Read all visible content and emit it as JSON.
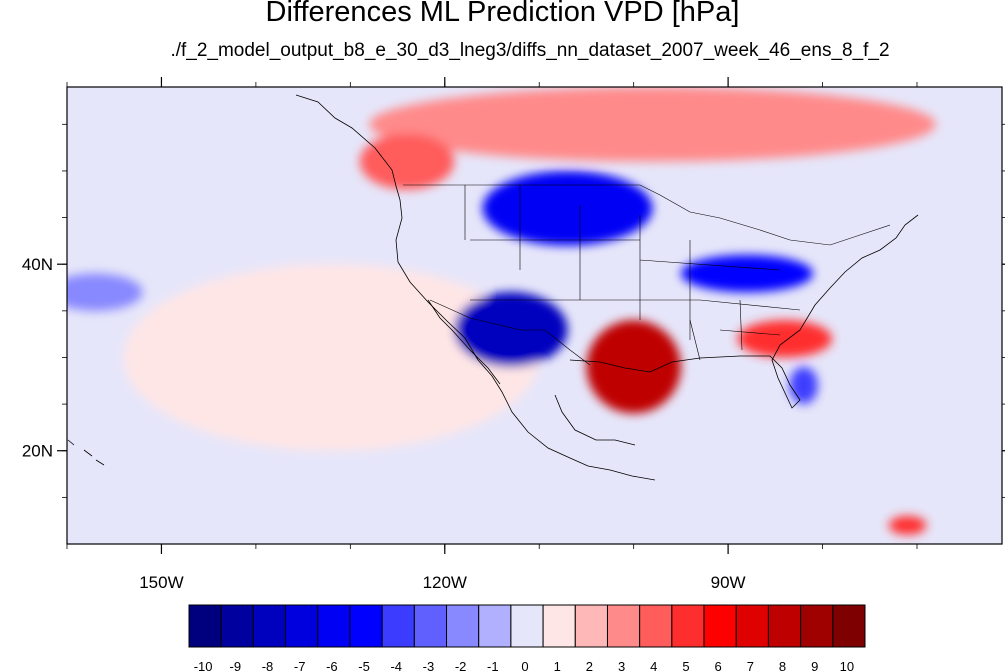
{
  "title": "Differences ML Prediction VPD [hPa]",
  "subtitle": "./f_2_model_output_b8_e_30_d3_lneg3/diffs_nn_dataset_2007_week_46_ens_8_f_2",
  "map": {
    "projection": "cylindrical-equidistant",
    "lon_range": [
      -160,
      -61
    ],
    "lat_range": [
      10,
      59
    ],
    "lon_ticks": [
      {
        "lon": -150,
        "label": "150W"
      },
      {
        "lon": -120,
        "label": "120W"
      },
      {
        "lon": -90,
        "label": "90W"
      }
    ],
    "lat_ticks": [
      {
        "lat": 40,
        "label": "40N"
      },
      {
        "lat": 20,
        "label": "20N"
      }
    ],
    "background_color": "#e6e6fa"
  },
  "colorbar": {
    "labels": [
      "-10",
      "-9",
      "-8",
      "-7",
      "-6",
      "-5",
      "-4",
      "-3",
      "-2",
      "-1",
      "0",
      "1",
      "2",
      "3",
      "4",
      "5",
      "6",
      "7",
      "8",
      "9",
      "10"
    ],
    "colors": [
      "#00007f",
      "#00009f",
      "#0000bf",
      "#0000df",
      "#0000f5",
      "#0000ff",
      "#3c3cff",
      "#6060ff",
      "#8888ff",
      "#b0b0ff",
      "#e6e6fa",
      "#ffe6e6",
      "#ffb8b8",
      "#ff8a8a",
      "#ff5c5c",
      "#ff2e2e",
      "#ff0000",
      "#df0000",
      "#bf0000",
      "#9f0000",
      "#7f0000"
    ]
  },
  "regions": [
    {
      "name": "pacific-warm-band",
      "level": 1,
      "lon": -132,
      "lat": 30,
      "rx": 22,
      "ry": 10
    },
    {
      "name": "canada-warm-anomaly",
      "level": 3,
      "lon": -98,
      "lat": 55,
      "rx": 30,
      "ry": 4
    },
    {
      "name": "northwest-warm-anomaly",
      "level": 4,
      "lon": -124,
      "lat": 51,
      "rx": 5,
      "ry": 3
    },
    {
      "name": "northern-plains-cold-anomaly",
      "level": -6,
      "lon": -107,
      "lat": 46,
      "rx": 9,
      "ry": 4
    },
    {
      "name": "southwest-cold-anomaly",
      "level": -8,
      "lon": -113,
      "lat": 33,
      "rx": 6,
      "ry": 4
    },
    {
      "name": "southern-plains-warm-anomaly",
      "level": 8,
      "lon": -100,
      "lat": 29,
      "rx": 5,
      "ry": 5
    },
    {
      "name": "midwest-cold-anomaly",
      "level": -5,
      "lon": -88,
      "lat": 39,
      "rx": 7,
      "ry": 2
    },
    {
      "name": "southeast-warm-anomaly",
      "level": 5,
      "lon": -84,
      "lat": 32,
      "rx": 5,
      "ry": 2
    },
    {
      "name": "florida-cold-anomaly",
      "level": -4,
      "lon": -82,
      "lat": 27,
      "rx": 1.5,
      "ry": 2
    },
    {
      "name": "eastern-pacific-cold-patch",
      "level": -2,
      "lon": -157,
      "lat": 37,
      "rx": 5,
      "ry": 2
    },
    {
      "name": "caribbean-warm-patch",
      "level": 5,
      "lon": -71,
      "lat": 12,
      "rx": 2,
      "ry": 1
    }
  ]
}
